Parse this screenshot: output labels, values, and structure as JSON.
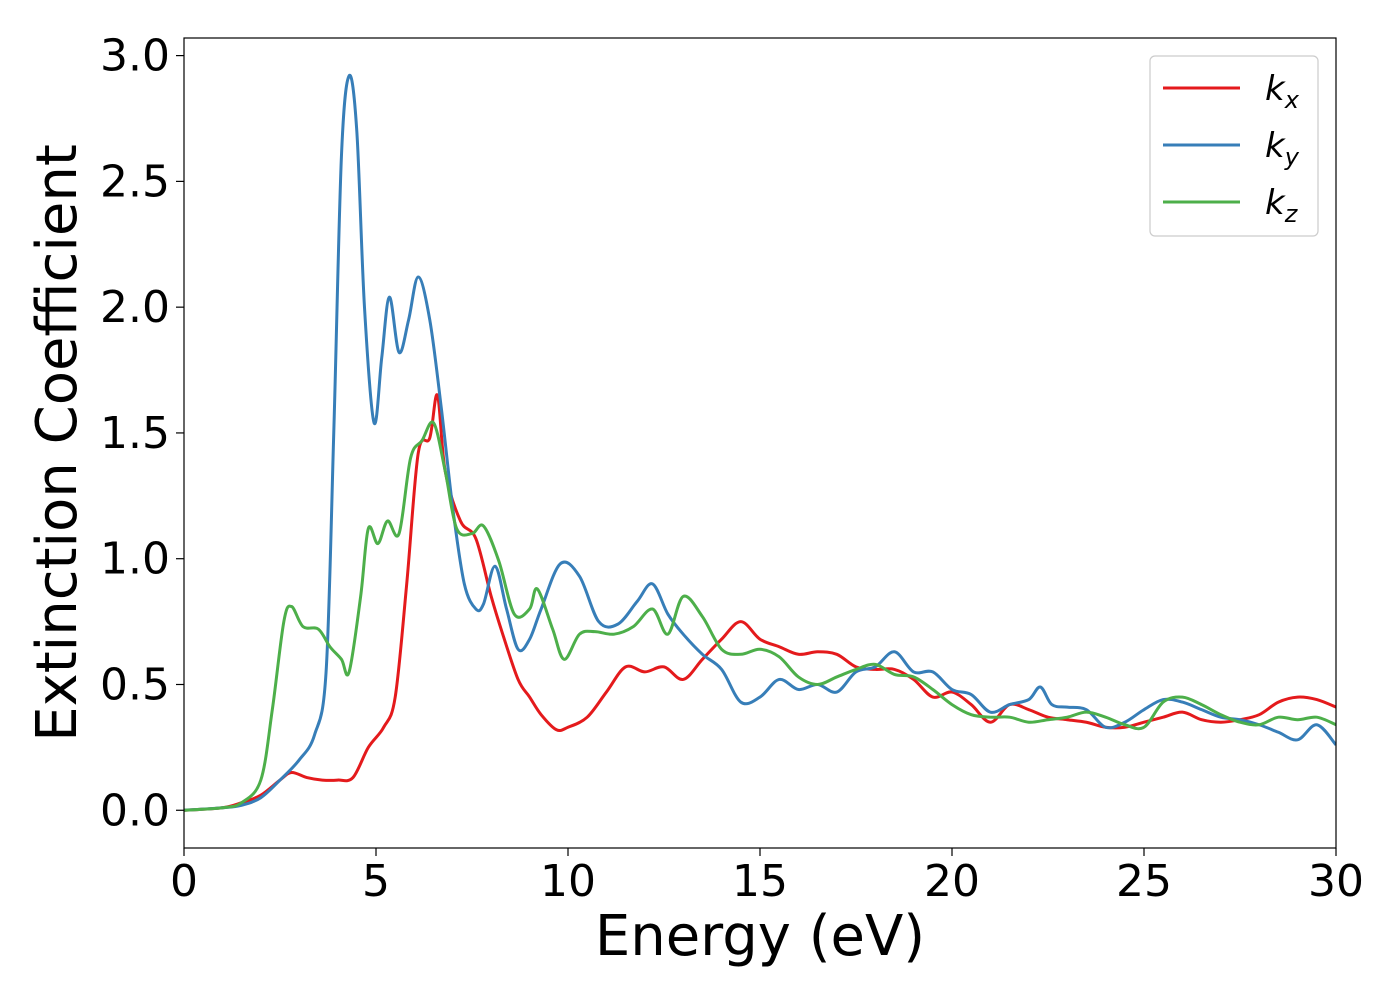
{
  "chart_data": {
    "type": "line",
    "title": "",
    "xlabel": "Energy (eV)",
    "ylabel": "Extinction Coefficient",
    "xlim": [
      0,
      30
    ],
    "ylim": [
      -0.15,
      3.07
    ],
    "xticks": [
      0,
      5,
      10,
      15,
      20,
      25,
      30
    ],
    "xtick_labels": [
      "0",
      "5",
      "10",
      "15",
      "20",
      "25",
      "30"
    ],
    "yticks": [
      0.0,
      0.5,
      1.0,
      1.5,
      2.0,
      2.5,
      3.0
    ],
    "ytick_labels": [
      "0.0",
      "0.5",
      "1.0",
      "1.5",
      "2.0",
      "2.5",
      "3.0"
    ],
    "grid": false,
    "legend_position": "top-right",
    "series": [
      {
        "name": "k_x",
        "label_main": "k",
        "label_sub": "x",
        "color": "#e41a1c",
        "points": [
          [
            0,
            0
          ],
          [
            1,
            0.01
          ],
          [
            1.5,
            0.03
          ],
          [
            2,
            0.06
          ],
          [
            2.5,
            0.12
          ],
          [
            2.8,
            0.15
          ],
          [
            3.2,
            0.13
          ],
          [
            3.6,
            0.12
          ],
          [
            4,
            0.12
          ],
          [
            4.4,
            0.13
          ],
          [
            4.8,
            0.25
          ],
          [
            5.2,
            0.33
          ],
          [
            5.5,
            0.45
          ],
          [
            5.8,
            0.9
          ],
          [
            6.1,
            1.42
          ],
          [
            6.4,
            1.48
          ],
          [
            6.6,
            1.65
          ],
          [
            6.8,
            1.35
          ],
          [
            7.2,
            1.15
          ],
          [
            7.6,
            1.08
          ],
          [
            8,
            0.85
          ],
          [
            8.3,
            0.7
          ],
          [
            8.7,
            0.52
          ],
          [
            9,
            0.45
          ],
          [
            9.3,
            0.38
          ],
          [
            9.7,
            0.32
          ],
          [
            10,
            0.33
          ],
          [
            10.5,
            0.37
          ],
          [
            11,
            0.47
          ],
          [
            11.5,
            0.57
          ],
          [
            12,
            0.55
          ],
          [
            12.5,
            0.57
          ],
          [
            13,
            0.52
          ],
          [
            13.5,
            0.6
          ],
          [
            14,
            0.68
          ],
          [
            14.5,
            0.75
          ],
          [
            15,
            0.68
          ],
          [
            15.5,
            0.65
          ],
          [
            16,
            0.62
          ],
          [
            16.5,
            0.63
          ],
          [
            17,
            0.62
          ],
          [
            17.5,
            0.57
          ],
          [
            18,
            0.56
          ],
          [
            18.5,
            0.56
          ],
          [
            19,
            0.52
          ],
          [
            19.5,
            0.45
          ],
          [
            20,
            0.47
          ],
          [
            20.5,
            0.42
          ],
          [
            21,
            0.35
          ],
          [
            21.5,
            0.42
          ],
          [
            22,
            0.4
          ],
          [
            22.5,
            0.37
          ],
          [
            23,
            0.36
          ],
          [
            23.5,
            0.35
          ],
          [
            24,
            0.33
          ],
          [
            24.5,
            0.33
          ],
          [
            25,
            0.35
          ],
          [
            25.5,
            0.37
          ],
          [
            26,
            0.39
          ],
          [
            26.5,
            0.36
          ],
          [
            27,
            0.35
          ],
          [
            27.5,
            0.36
          ],
          [
            28,
            0.38
          ],
          [
            28.5,
            0.43
          ],
          [
            29,
            0.45
          ],
          [
            29.5,
            0.44
          ],
          [
            30,
            0.41
          ]
        ]
      },
      {
        "name": "k_y",
        "label_main": "k",
        "label_sub": "y",
        "color": "#377eb8",
        "points": [
          [
            0,
            0
          ],
          [
            1,
            0.01
          ],
          [
            1.5,
            0.02
          ],
          [
            2,
            0.05
          ],
          [
            2.5,
            0.12
          ],
          [
            3,
            0.2
          ],
          [
            3.4,
            0.3
          ],
          [
            3.7,
            0.55
          ],
          [
            3.9,
            1.5
          ],
          [
            4.1,
            2.6
          ],
          [
            4.3,
            2.92
          ],
          [
            4.5,
            2.7
          ],
          [
            4.7,
            2.0
          ],
          [
            4.95,
            1.54
          ],
          [
            5.15,
            1.8
          ],
          [
            5.35,
            2.04
          ],
          [
            5.6,
            1.82
          ],
          [
            5.85,
            1.95
          ],
          [
            6.1,
            2.12
          ],
          [
            6.4,
            1.95
          ],
          [
            6.7,
            1.6
          ],
          [
            7,
            1.2
          ],
          [
            7.3,
            0.9
          ],
          [
            7.6,
            0.8
          ],
          [
            7.8,
            0.82
          ],
          [
            8.1,
            0.97
          ],
          [
            8.4,
            0.8
          ],
          [
            8.7,
            0.64
          ],
          [
            9,
            0.68
          ],
          [
            9.3,
            0.8
          ],
          [
            9.8,
            0.98
          ],
          [
            10.3,
            0.93
          ],
          [
            10.8,
            0.75
          ],
          [
            11.3,
            0.74
          ],
          [
            11.8,
            0.83
          ],
          [
            12.2,
            0.9
          ],
          [
            12.6,
            0.78
          ],
          [
            13,
            0.7
          ],
          [
            13.5,
            0.62
          ],
          [
            14,
            0.56
          ],
          [
            14.5,
            0.43
          ],
          [
            15,
            0.45
          ],
          [
            15.5,
            0.52
          ],
          [
            16,
            0.48
          ],
          [
            16.5,
            0.5
          ],
          [
            17,
            0.47
          ],
          [
            17.5,
            0.55
          ],
          [
            18,
            0.57
          ],
          [
            18.5,
            0.63
          ],
          [
            19,
            0.55
          ],
          [
            19.5,
            0.55
          ],
          [
            20,
            0.48
          ],
          [
            20.5,
            0.46
          ],
          [
            21,
            0.39
          ],
          [
            21.5,
            0.42
          ],
          [
            22,
            0.44
          ],
          [
            22.3,
            0.49
          ],
          [
            22.6,
            0.42
          ],
          [
            23,
            0.41
          ],
          [
            23.5,
            0.4
          ],
          [
            24,
            0.33
          ],
          [
            24.5,
            0.35
          ],
          [
            25,
            0.4
          ],
          [
            25.5,
            0.44
          ],
          [
            26,
            0.43
          ],
          [
            26.5,
            0.4
          ],
          [
            27,
            0.37
          ],
          [
            27.5,
            0.36
          ],
          [
            28,
            0.34
          ],
          [
            28.5,
            0.31
          ],
          [
            29,
            0.28
          ],
          [
            29.5,
            0.34
          ],
          [
            30,
            0.26
          ]
        ]
      },
      {
        "name": "k_z",
        "label_main": "k",
        "label_sub": "z",
        "color": "#4daf4a",
        "points": [
          [
            0,
            0
          ],
          [
            1,
            0.01
          ],
          [
            1.5,
            0.03
          ],
          [
            2,
            0.12
          ],
          [
            2.3,
            0.4
          ],
          [
            2.6,
            0.75
          ],
          [
            2.8,
            0.81
          ],
          [
            3.1,
            0.73
          ],
          [
            3.5,
            0.72
          ],
          [
            3.8,
            0.65
          ],
          [
            4.1,
            0.6
          ],
          [
            4.3,
            0.55
          ],
          [
            4.6,
            0.85
          ],
          [
            4.8,
            1.12
          ],
          [
            5.05,
            1.06
          ],
          [
            5.3,
            1.15
          ],
          [
            5.6,
            1.1
          ],
          [
            5.9,
            1.4
          ],
          [
            6.2,
            1.47
          ],
          [
            6.5,
            1.54
          ],
          [
            6.8,
            1.35
          ],
          [
            7.1,
            1.12
          ],
          [
            7.5,
            1.1
          ],
          [
            7.8,
            1.13
          ],
          [
            8.2,
            0.99
          ],
          [
            8.6,
            0.78
          ],
          [
            9,
            0.8
          ],
          [
            9.2,
            0.88
          ],
          [
            9.6,
            0.72
          ],
          [
            9.9,
            0.6
          ],
          [
            10.3,
            0.7
          ],
          [
            10.7,
            0.71
          ],
          [
            11.2,
            0.7
          ],
          [
            11.7,
            0.73
          ],
          [
            12.2,
            0.8
          ],
          [
            12.6,
            0.7
          ],
          [
            13,
            0.85
          ],
          [
            13.5,
            0.77
          ],
          [
            14,
            0.64
          ],
          [
            14.5,
            0.62
          ],
          [
            15,
            0.64
          ],
          [
            15.5,
            0.61
          ],
          [
            16,
            0.53
          ],
          [
            16.5,
            0.5
          ],
          [
            17,
            0.53
          ],
          [
            17.5,
            0.56
          ],
          [
            18,
            0.58
          ],
          [
            18.5,
            0.54
          ],
          [
            19,
            0.53
          ],
          [
            19.5,
            0.48
          ],
          [
            20,
            0.42
          ],
          [
            20.5,
            0.38
          ],
          [
            21,
            0.37
          ],
          [
            21.5,
            0.37
          ],
          [
            22,
            0.35
          ],
          [
            22.5,
            0.36
          ],
          [
            23,
            0.37
          ],
          [
            23.5,
            0.39
          ],
          [
            24,
            0.37
          ],
          [
            24.5,
            0.34
          ],
          [
            25,
            0.33
          ],
          [
            25.5,
            0.43
          ],
          [
            26,
            0.45
          ],
          [
            26.5,
            0.42
          ],
          [
            27,
            0.38
          ],
          [
            27.5,
            0.35
          ],
          [
            28,
            0.34
          ],
          [
            28.5,
            0.37
          ],
          [
            29,
            0.36
          ],
          [
            29.5,
            0.37
          ],
          [
            30,
            0.34
          ]
        ]
      }
    ]
  }
}
